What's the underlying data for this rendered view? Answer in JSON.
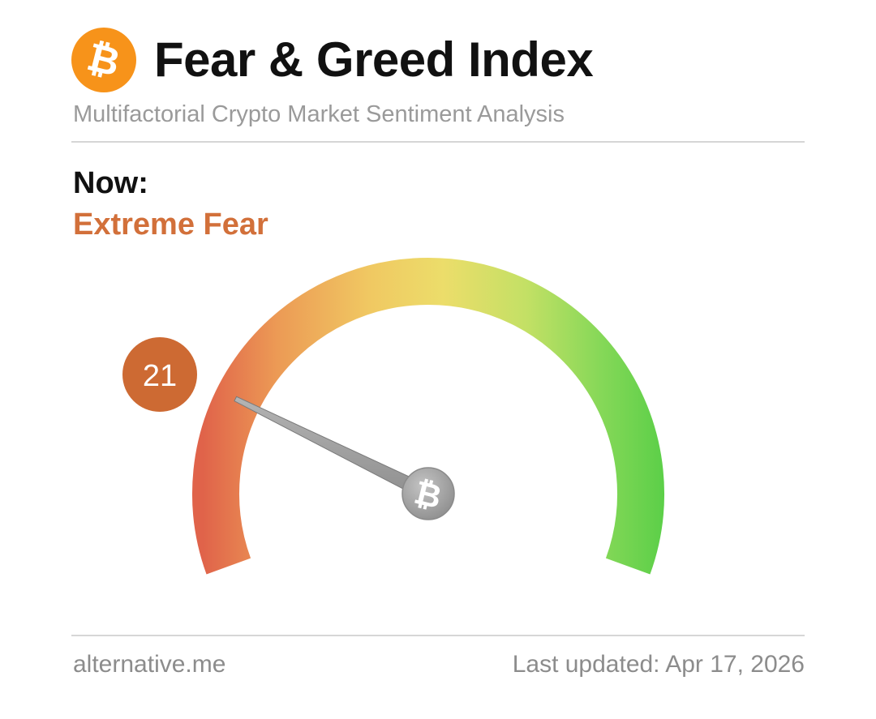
{
  "header": {
    "logo_glyph": "₿",
    "logo_icon": "bitcoin-icon",
    "title": "Fear & Greed Index",
    "subtitle": "Multifactorial Crypto Market Sentiment Analysis"
  },
  "status": {
    "now_label": "Now:",
    "classification": "Extreme Fear",
    "value": 21,
    "value_label": "21",
    "scale_min": 0,
    "scale_max": 100
  },
  "gauge": {
    "center_glyph": "₿",
    "center_icon": "bitcoin-icon",
    "gradient_colors": [
      "#e0634a",
      "#ec9a55",
      "#f0c862",
      "#ecdd6a",
      "#c3e065",
      "#86d858",
      "#5bcf48"
    ]
  },
  "colors": {
    "accent": "#f7931a",
    "fear": "#d2703a",
    "badge": "#cd6a33"
  },
  "footer": {
    "source": "alternative.me",
    "updated": "Last updated: Apr 17, 2026"
  }
}
